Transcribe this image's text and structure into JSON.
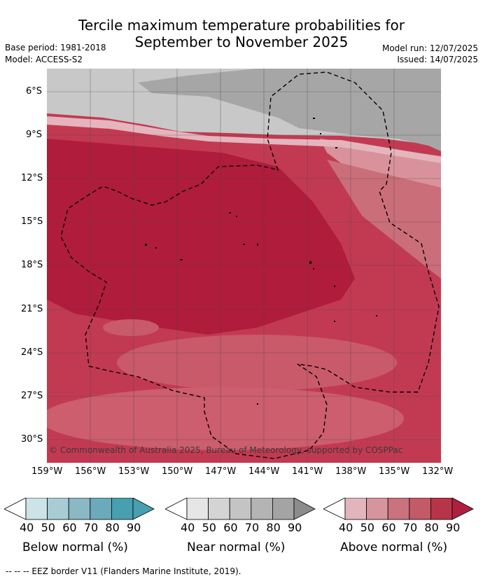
{
  "title_line1": "Tercile maximum temperature probabilities for",
  "title_line2": "September to November 2025",
  "base_period": "Base period: 1981-2018",
  "model": "Model: ACCESS-S2",
  "model_run": "Model run: 12/07/2025",
  "issued": "Issued: 14/07/2025",
  "copyright": "© Commonwealth of Australia 2025, Bureau of Meteorology, supported by COSPPac",
  "lat_labels": [
    "6°S",
    "9°S",
    "12°S",
    "15°S",
    "18°S",
    "21°S",
    "24°S",
    "27°S",
    "30°S"
  ],
  "lon_labels": [
    "159°W",
    "156°W",
    "153°W",
    "150°W",
    "147°W",
    "144°W",
    "141°W",
    "138°W",
    "135°W",
    "132°W"
  ],
  "colorbars": [
    {
      "title": "Below normal (%)",
      "ticks": [
        "40",
        "50",
        "60",
        "70",
        "80",
        "90"
      ],
      "colors": [
        "#cce3e8",
        "#a8ccd3",
        "#8ab8c3",
        "#6aaabb",
        "#479fb0"
      ],
      "end": "#479fb0"
    },
    {
      "title": "Near normal (%)",
      "ticks": [
        "40",
        "50",
        "60",
        "70",
        "80",
        "90"
      ],
      "colors": [
        "#e6e6e6",
        "#d4d4d4",
        "#c4c4c4",
        "#b4b4b4",
        "#a4a4a4"
      ],
      "end": "#8c8c8c"
    },
    {
      "title": "Above normal (%)",
      "ticks": [
        "40",
        "50",
        "60",
        "70",
        "80",
        "90"
      ],
      "colors": [
        "#e2b5bc",
        "#d6949c",
        "#ca727e",
        "#c25a67",
        "#b83448"
      ],
      "end": "#b0203e"
    }
  ],
  "footer": "--  --  -- EEZ border V11 (Flanders Marine Institute, 2019)."
}
